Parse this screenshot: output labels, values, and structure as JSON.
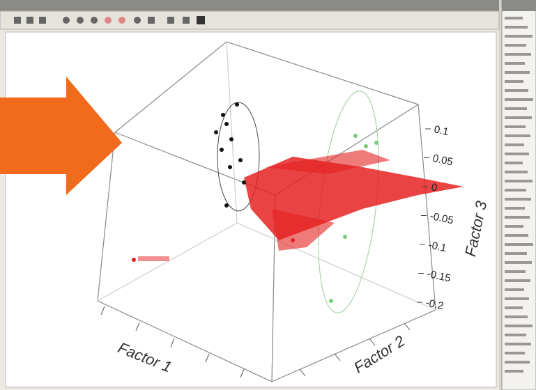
{
  "plot": {
    "x_axis": {
      "label": "Factor 1"
    },
    "y_axis": {
      "label": "Factor 2"
    },
    "z_axis": {
      "label": "Factor 3",
      "ticks": [
        0.1,
        0.05,
        0,
        -0.05,
        -0.1,
        -0.15,
        -0.2
      ]
    }
  }
}
